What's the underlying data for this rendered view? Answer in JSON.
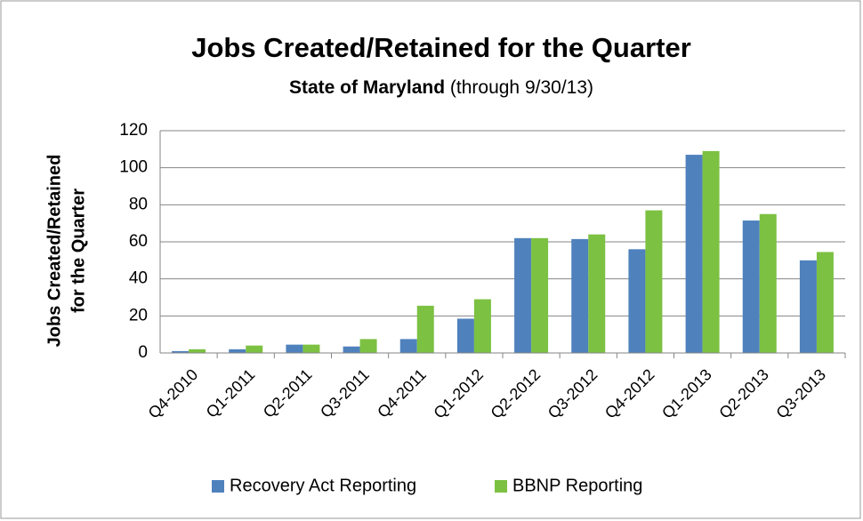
{
  "chart_data": {
    "type": "bar",
    "title": "Jobs Created/Retained for the Quarter",
    "subtitle": "State of Maryland",
    "subtitle_note": "(through 9/30/13)",
    "ylabel": [
      "Jobs Created/Retained",
      "for the Quarter"
    ],
    "categories": [
      "Q4-2010",
      "Q1-2011",
      "Q2-2011",
      "Q3-2011",
      "Q4-2011",
      "Q1-2012",
      "Q2-2012",
      "Q3-2012",
      "Q4-2012",
      "Q1-2013",
      "Q2-2013",
      "Q3-2013"
    ],
    "series": [
      {
        "name": "Recovery Act Reporting",
        "color": "#4f81bd",
        "values": [
          1,
          2,
          4.5,
          3.5,
          7.5,
          18.5,
          62,
          61.5,
          56,
          107,
          71.5,
          50
        ]
      },
      {
        "name": "BBNP Reporting",
        "color": "#7cc142",
        "values": [
          2,
          4,
          4.5,
          7.5,
          25.5,
          29,
          62,
          64,
          77,
          109,
          75,
          54.5
        ]
      }
    ],
    "ylim": [
      0,
      120
    ],
    "yticks": [
      0,
      20,
      40,
      60,
      80,
      100,
      120
    ],
    "grid": true,
    "legend": "bottom"
  }
}
